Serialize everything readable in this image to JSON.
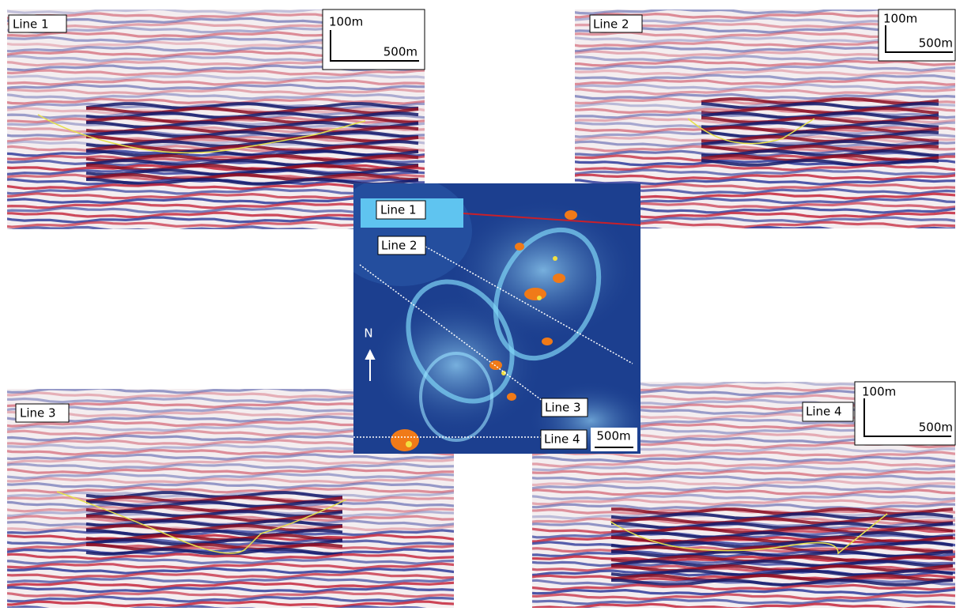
{
  "panels": [
    {
      "label": "Line 1",
      "scale": {
        "vertical": "100m",
        "horizontal": "500m"
      }
    },
    {
      "label": "Line 2",
      "scale": {
        "vertical": "100m",
        "horizontal": "500m"
      }
    },
    {
      "label": "Line 3"
    },
    {
      "label": "Line 4",
      "scale": {
        "vertical": "100m",
        "horizontal": "500m"
      }
    }
  ],
  "map": {
    "labels": [
      "Line 1",
      "Line 2",
      "Line 3",
      "Line 4"
    ],
    "north": "N",
    "scale": "500m"
  }
}
